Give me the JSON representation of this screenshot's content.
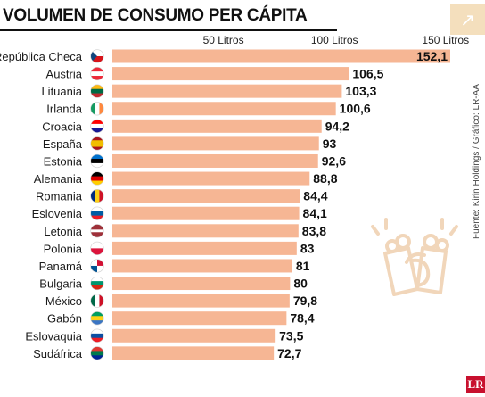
{
  "title": "VOLUMEN DE CONSUMO PER CÁPITA",
  "source": "Fuente: Kirin Holdings / Gráfico: LR-AA",
  "logo": "LR",
  "corner_icon": "arrow-up-right-icon",
  "watermark_icon": "beer-mugs-toast-icon",
  "colors": {
    "bar": "#f6b694",
    "text": "#1b1b1b",
    "title": "#111111",
    "watermark": "#f1d6ba",
    "logo": "#c8102e"
  },
  "chart_data": {
    "type": "bar",
    "orientation": "horizontal",
    "ticks": [
      {
        "value": 50,
        "label": "50 Litros"
      },
      {
        "value": 100,
        "label": "100 Litros"
      },
      {
        "value": 150,
        "label": "150 Litros"
      }
    ],
    "grid": false,
    "rows": [
      {
        "country": "República Checa",
        "value": 152.1,
        "label": "152,1",
        "flag": [
          [
            "#ffffff",
            "#d7141a"
          ],
          "#11457e"
        ]
      },
      {
        "country": "Austria",
        "value": 106.5,
        "label": "106,5",
        "flag": [
          "#ed2939",
          "#ffffff",
          "#ed2939"
        ]
      },
      {
        "country": "Lituania",
        "value": 103.3,
        "label": "103,3",
        "flag": [
          "#fdb913",
          "#006a44",
          "#c1272d"
        ]
      },
      {
        "country": "Irlanda",
        "value": 100.6,
        "label": "100,6",
        "flag": [
          "v",
          "#169b62",
          "#ffffff",
          "#ff883e"
        ]
      },
      {
        "country": "Croacia",
        "value": 94.2,
        "label": "94,2",
        "flag": [
          "#ff0000",
          "#ffffff",
          "#171796"
        ]
      },
      {
        "country": "España",
        "value": 93,
        "label": "93",
        "flag": [
          "#aa151b",
          "#f1bf00",
          "#f1bf00",
          "#aa151b"
        ]
      },
      {
        "country": "Estonia",
        "value": 92.6,
        "label": "92,6",
        "flag": [
          "#0072ce",
          "#000000",
          "#ffffff"
        ]
      },
      {
        "country": "Alemania",
        "value": 88.8,
        "label": "88,8",
        "flag": [
          "#000000",
          "#dd0000",
          "#ffce00"
        ]
      },
      {
        "country": "Romania",
        "value": 84.4,
        "label": "84,4",
        "flag": [
          "v",
          "#002b7f",
          "#fcd116",
          "#ce1126"
        ]
      },
      {
        "country": "Eslovenia",
        "value": 84.1,
        "label": "84,1",
        "flag": [
          "#ffffff",
          "#005da4",
          "#ed1c24"
        ]
      },
      {
        "country": "Letonia",
        "value": 83.8,
        "label": "83,8",
        "flag": [
          "#9e3039",
          "#9e3039",
          "#ffffff",
          "#9e3039",
          "#9e3039"
        ]
      },
      {
        "country": "Polonia",
        "value": 83,
        "label": "83",
        "flag": [
          "#ffffff",
          "#dc143c"
        ]
      },
      {
        "country": "Panamá",
        "value": 81,
        "label": "81",
        "flag": [
          [
            "#ffffff",
            "#d21034"
          ],
          [
            "#005293",
            "#ffffff"
          ]
        ]
      },
      {
        "country": "Bulgaria",
        "value": 80,
        "label": "80",
        "flag": [
          "#ffffff",
          "#00966e",
          "#d62612"
        ]
      },
      {
        "country": "México",
        "value": 79.8,
        "label": "79,8",
        "flag": [
          "v",
          "#006847",
          "#ffffff",
          "#ce1126"
        ]
      },
      {
        "country": "Gabón",
        "value": 78.4,
        "label": "78,4",
        "flag": [
          "#009e60",
          "#fcd116",
          "#3a75c4"
        ]
      },
      {
        "country": "Eslovaquia",
        "value": 73.5,
        "label": "73,5",
        "flag": [
          "#ffffff",
          "#0b4ea2",
          "#ee1c25"
        ]
      },
      {
        "country": "Sudáfrica",
        "value": 72.7,
        "label": "72,7",
        "flag": [
          "#de3831",
          "#007a4d",
          "#002395"
        ]
      }
    ]
  }
}
